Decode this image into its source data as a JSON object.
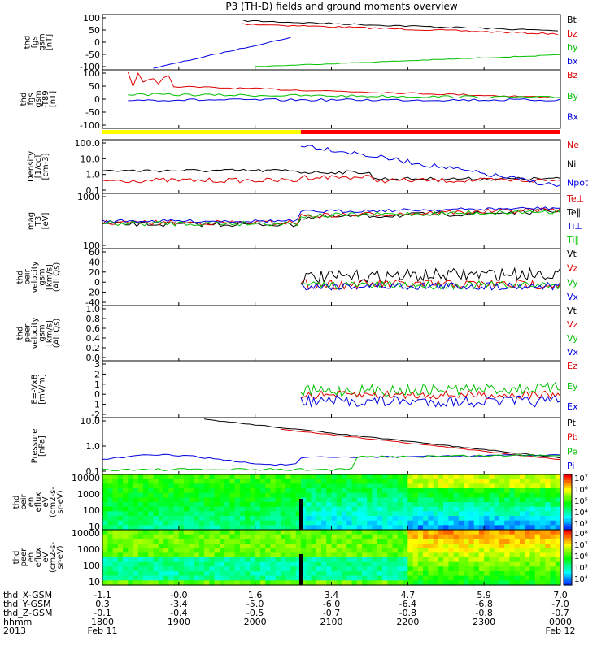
{
  "title": "P3 (TH-D) fields and ground moments overview",
  "chart_data": {
    "type": "line",
    "panels": [
      {
        "key": "fgs",
        "ylabel_lines": [
          "thd",
          "fgs",
          "gsm",
          "[nT]"
        ],
        "yticks": [
          "100",
          "50",
          "0",
          "-50",
          "-100"
        ],
        "ylim": [
          -100,
          100
        ],
        "legend": [
          {
            "name": "Bt",
            "color": "#000000"
          },
          {
            "name": "bz",
            "color": "#e00000"
          },
          {
            "name": "by",
            "color": "#00c000"
          },
          {
            "name": "bx",
            "color": "#0000e0"
          }
        ]
      },
      {
        "key": "fgs189",
        "ylabel_lines": [
          "thd",
          "fgs",
          "gsm",
          "-T89",
          "[nT]"
        ],
        "yticks": [
          "100",
          "50",
          "0",
          "-50",
          "-100"
        ],
        "ylim": [
          -120,
          120
        ],
        "legend": [
          {
            "name": "Bz",
            "color": "#e00000"
          },
          {
            "name": "By",
            "color": "#00c000"
          },
          {
            "name": "Bx",
            "color": "#0000e0"
          }
        ]
      },
      {
        "key": "density",
        "ylabel_lines": [
          "Density",
          "[1/cc]",
          "[cm-3]"
        ],
        "yticks": [
          "100.0",
          "10.0",
          "1.0",
          "0.1"
        ],
        "log": true,
        "legend": [
          {
            "name": "Ne",
            "color": "#e00000"
          },
          {
            "name": "Ni",
            "color": "#000000"
          },
          {
            "name": "Npot",
            "color": "#0000e0"
          }
        ]
      },
      {
        "key": "temp",
        "ylabel_lines": [
          "mag",
          "T3",
          "[eV]"
        ],
        "yticks": [
          "1000",
          "100"
        ],
        "log": true,
        "legend": [
          {
            "name": "Te⊥",
            "color": "#e00000"
          },
          {
            "name": "Te∥",
            "color": "#000000"
          },
          {
            "name": "Ti⊥",
            "color": "#0000e0"
          },
          {
            "name": "Ti∥",
            "color": "#00c000"
          }
        ]
      },
      {
        "key": "vpeir",
        "ylabel_lines": [
          "thd",
          "peir",
          "velocity",
          "gsm",
          "[km/s]",
          "(All Qs)"
        ],
        "yticks": [
          "60",
          "40",
          "20",
          "0",
          "-20",
          "-40"
        ],
        "ylim": [
          -40,
          60
        ],
        "legend": [
          {
            "name": "Vt",
            "color": "#000000"
          },
          {
            "name": "Vz",
            "color": "#e00000"
          },
          {
            "name": "Vy",
            "color": "#00c000"
          },
          {
            "name": "Vx",
            "color": "#0000e0"
          }
        ]
      },
      {
        "key": "vpeer",
        "ylabel_lines": [
          "thd",
          "peer",
          "velocity",
          "gsm",
          "[km/s]",
          "(All Qs)"
        ],
        "yticks": [
          "1.0",
          "0.8",
          "0.6",
          "0.4",
          "0.2",
          "0.0"
        ],
        "ylim": [
          0,
          1
        ],
        "legend": [
          {
            "name": "Vt",
            "color": "#000000"
          },
          {
            "name": "Vz",
            "color": "#e00000"
          },
          {
            "name": "Vy",
            "color": "#00c000"
          },
          {
            "name": "Vx",
            "color": "#0000e0"
          }
        ]
      },
      {
        "key": "efield",
        "ylabel_lines": [
          "E=-VxB",
          "[mV/m]"
        ],
        "yticks": [
          "3",
          "2",
          "1",
          "0",
          "-1",
          "-2"
        ],
        "ylim": [
          -2,
          3
        ],
        "legend": [
          {
            "name": "Ez",
            "color": "#e00000"
          },
          {
            "name": "Ey",
            "color": "#00c000"
          },
          {
            "name": "Ex",
            "color": "#0000e0"
          }
        ]
      },
      {
        "key": "pressure",
        "ylabel_lines": [
          "Pressure",
          "[nPa]"
        ],
        "yticks": [
          "10.0",
          "1.0",
          "0.1"
        ],
        "log": true,
        "legend": [
          {
            "name": "Pt",
            "color": "#000000"
          },
          {
            "name": "Pb",
            "color": "#e00000"
          },
          {
            "name": "Pe",
            "color": "#00c000"
          },
          {
            "name": "Pi",
            "color": "#0000e0"
          }
        ]
      },
      {
        "key": "ion_eflux",
        "ylabel_lines": [
          "thd",
          "peir",
          "en",
          "eflux",
          "eV",
          "(cm2-s-",
          "sr-eV)"
        ],
        "yticks": [
          "10000",
          "1000",
          "100",
          "10"
        ],
        "colorbar": [
          "10⁷",
          "10⁶",
          "10⁵",
          "10⁴",
          "10³"
        ]
      },
      {
        "key": "elec_eflux",
        "ylabel_lines": [
          "thd",
          "peer",
          "en",
          "eflux",
          "eV",
          "(cm2-s-",
          "sr-eV)"
        ],
        "yticks": [
          "10000",
          "1000",
          "100",
          "10"
        ],
        "colorbar": [
          "10⁸",
          "10⁷",
          "10⁶",
          "10⁵",
          "10⁴"
        ]
      }
    ],
    "xticks": {
      "row_labels": [
        "thd_X-GSM",
        "thd_Y-GSM",
        "thd_Z-GSM",
        "hhmm",
        "2013"
      ],
      "columns": [
        [
          "-1.1",
          "0.3",
          "-0.1",
          "1800",
          "Feb 11"
        ],
        [
          "-0.0",
          "-3.4",
          "-0.4",
          "1900",
          ""
        ],
        [
          "1.6",
          "-5.0",
          "-0.5",
          "2000",
          ""
        ],
        [
          "3.4",
          "-6.0",
          "-0.7",
          "2100",
          ""
        ],
        [
          "4.7",
          "-6.4",
          "-0.8",
          "2200",
          ""
        ],
        [
          "5.9",
          "-6.8",
          "-0.8",
          "2300",
          ""
        ],
        [
          "7.0",
          "-7.0",
          "-0.7",
          "0000",
          "Feb 12"
        ]
      ]
    },
    "mode_bar": {
      "colors": [
        "#ffff00",
        "#ff0000"
      ],
      "switch_hhmm": "2036"
    }
  }
}
